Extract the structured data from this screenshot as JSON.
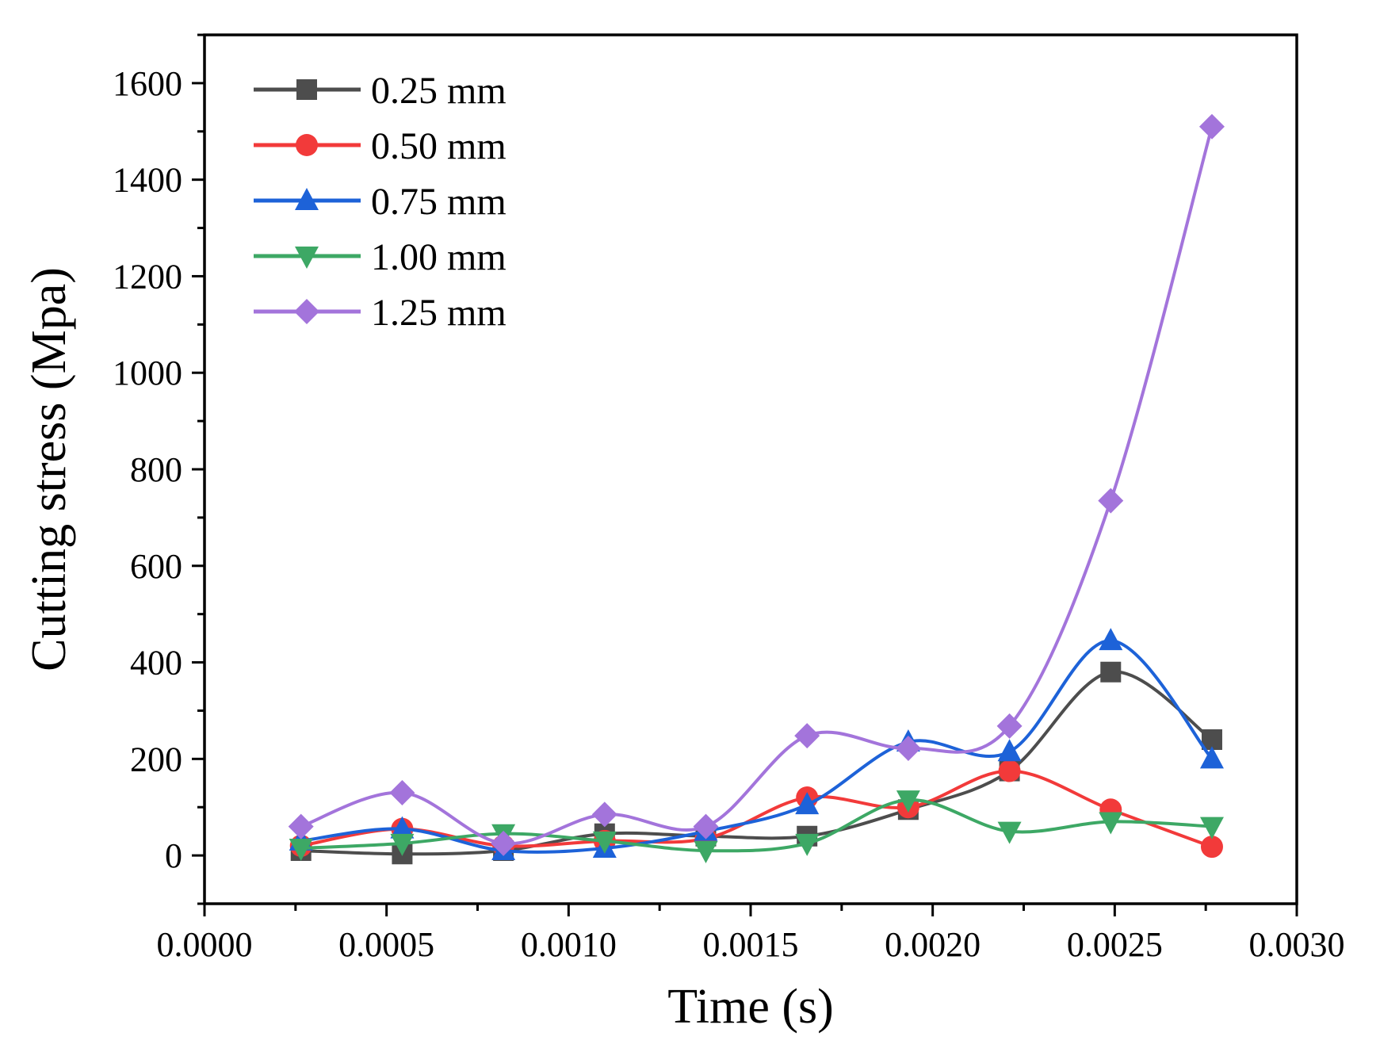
{
  "chart_data": {
    "type": "line",
    "title": "",
    "xlabel": "Time (s)",
    "ylabel": "Cutting stress (Mpa)",
    "xlim": [
      0,
      0.003
    ],
    "ylim": [
      -100,
      1700
    ],
    "x_ticks": [
      0.0,
      0.0005,
      0.001,
      0.0015,
      0.002,
      0.0025,
      0.003
    ],
    "x_tick_labels": [
      "0.0000",
      "0.0005",
      "0.0010",
      "0.0015",
      "0.0020",
      "0.0025",
      "0.0030"
    ],
    "y_ticks": [
      0,
      200,
      400,
      600,
      800,
      1000,
      1200,
      1400,
      1600
    ],
    "y_tick_labels": [
      "0",
      "200",
      "400",
      "600",
      "800",
      "1000",
      "1200",
      "1400",
      "1600"
    ],
    "grid": false,
    "legend_position": "top-left",
    "x": [
      0.000265,
      0.000543,
      0.000821,
      0.001099,
      0.001377,
      0.001655,
      0.001933,
      0.002211,
      0.002489,
      0.002767
    ],
    "series": [
      {
        "name": "0.25 mm",
        "color": "#4d4d4d",
        "marker": "square",
        "values": [
          10,
          3,
          10,
          45,
          40,
          40,
          95,
          175,
          380,
          240
        ]
      },
      {
        "name": "0.50 mm",
        "color": "#f23a3a",
        "marker": "circle",
        "values": [
          20,
          55,
          20,
          30,
          35,
          120,
          100,
          175,
          95,
          18
        ]
      },
      {
        "name": "0.75 mm",
        "color": "#1d62d8",
        "marker": "triangle-up",
        "values": [
          30,
          55,
          10,
          15,
          50,
          105,
          235,
          215,
          445,
          200
        ]
      },
      {
        "name": "1.00 mm",
        "color": "#3da865",
        "marker": "triangle-down",
        "values": [
          15,
          25,
          45,
          30,
          10,
          25,
          115,
          50,
          70,
          60
        ]
      },
      {
        "name": "1.25 mm",
        "color": "#a374db",
        "marker": "diamond",
        "values": [
          60,
          130,
          25,
          85,
          60,
          248,
          222,
          268,
          735,
          1510
        ]
      }
    ]
  }
}
